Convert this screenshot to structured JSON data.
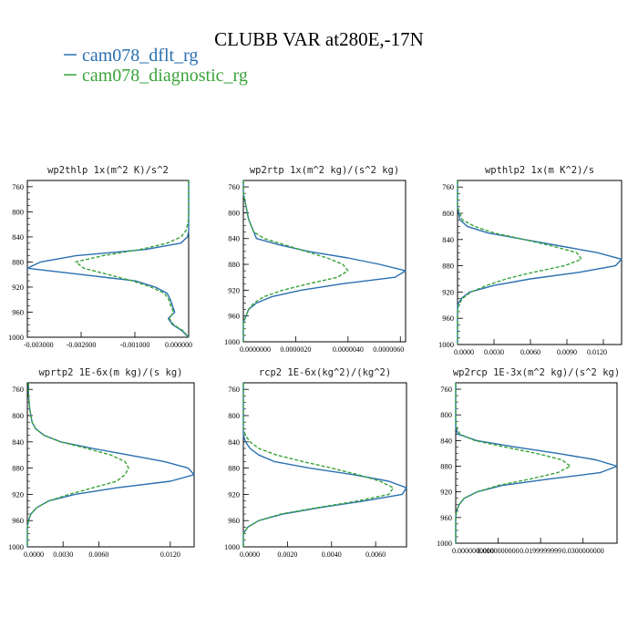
{
  "figure": {
    "title": "CLUBB VAR at280E,-17N"
  },
  "legend": [
    {
      "label": "cam078_dflt_rg",
      "color": "#2a6fb0"
    },
    {
      "label": "cam078_diagnostic_rg",
      "color": "#3aa33a"
    }
  ],
  "chart_data": [
    {
      "type": "line",
      "title": "wp2thlp  1x(m^2 K)/s^2",
      "y_axis": {
        "ticks": [
          "760",
          "800",
          "840",
          "880",
          "920",
          "960",
          "1000"
        ],
        "ylim": [
          750,
          1000
        ],
        "inverted": true
      },
      "x_axis": {
        "ticks": [
          "-0.003000",
          "-0.002000",
          "-0.001000",
          "0.000000"
        ],
        "xlim": [
          -0.003,
          0.0
        ]
      },
      "y": [
        750,
        770,
        790,
        810,
        820,
        830,
        840,
        850,
        860,
        870,
        880,
        890,
        900,
        910,
        920,
        930,
        940,
        950,
        960,
        970,
        980,
        990,
        1000
      ],
      "series": [
        {
          "name": "cam078_dflt_rg",
          "style": "solid",
          "x": [
            0,
            0,
            0,
            0,
            0,
            0,
            -2e-05,
            -0.00015,
            -0.0008,
            -0.0021,
            -0.00275,
            -0.003,
            -0.002,
            -0.001,
            -0.00062,
            -0.0004,
            -0.00034,
            -0.0003,
            -0.00026,
            -0.00038,
            -0.0003,
            -0.00012,
            0
          ]
        },
        {
          "name": "cam078_diagnostic_rg",
          "style": "dashed",
          "x": [
            0,
            0,
            0,
            0,
            -2e-05,
            -5e-05,
            -0.00014,
            -0.0004,
            -0.0009,
            -0.0016,
            -0.0021,
            -0.00195,
            -0.0015,
            -0.00105,
            -0.0007,
            -0.00045,
            -0.00037,
            -0.00033,
            -0.00028,
            -0.00036,
            -0.00028,
            -0.0001,
            0
          ]
        }
      ]
    },
    {
      "type": "line",
      "title": "wp2rtp  1x(m^2 kg)/(s^2 kg)",
      "y_axis": {
        "ticks": [
          "760",
          "800",
          "840",
          "880",
          "920",
          "960",
          "1000"
        ],
        "ylim": [
          750,
          1000
        ],
        "inverted": true
      },
      "x_axis": {
        "ticks": [
          "0.0000000",
          "0.0000020",
          "0.0000040",
          "0.0000060"
        ],
        "xlim": [
          0.0,
          6.2e-06
        ]
      },
      "y": [
        750,
        770,
        790,
        810,
        820,
        830,
        840,
        850,
        860,
        870,
        880,
        890,
        900,
        910,
        920,
        930,
        940,
        950,
        960,
        970,
        980,
        990,
        1000
      ],
      "series": [
        {
          "name": "cam078_dflt_rg",
          "style": "solid",
          "x": [
            0,
            0,
            1e-07,
            2e-07,
            3e-07,
            4e-07,
            5e-07,
            1.4e-06,
            2.5e-06,
            4e-06,
            5.2e-06,
            6.2e-06,
            5.8e-06,
            3.8e-06,
            2.2e-06,
            1.1e-06,
            5e-07,
            2e-07,
            1e-07,
            0,
            0,
            0,
            0
          ]
        },
        {
          "name": "cam078_diagnostic_rg",
          "style": "dashed",
          "x": [
            0,
            0,
            1e-07,
            2e-07,
            3e-07,
            4e-07,
            8e-07,
            1.6e-06,
            2.4e-06,
            3.2e-06,
            3.8e-06,
            4e-06,
            3.6e-06,
            2.5e-06,
            1.5e-06,
            8e-07,
            4e-07,
            2e-07,
            1e-07,
            0,
            0,
            0,
            0
          ]
        }
      ]
    },
    {
      "type": "line",
      "title": "wpthlp2  1x(m K^2)/s",
      "y_axis": {
        "ticks": [
          "760",
          "800",
          "840",
          "880",
          "920",
          "960",
          "1000"
        ],
        "ylim": [
          750,
          1000
        ],
        "inverted": true
      },
      "x_axis": {
        "ticks": [
          "0.0000",
          "0.0030",
          "0.0060",
          "0.0090",
          "0.0120"
        ],
        "xlim": [
          0.0,
          0.0135
        ]
      },
      "y": [
        750,
        770,
        790,
        810,
        820,
        830,
        840,
        850,
        860,
        870,
        880,
        890,
        900,
        910,
        920,
        930,
        940,
        950,
        960,
        970,
        980,
        990,
        1000
      ],
      "series": [
        {
          "name": "cam078_dflt_rg",
          "style": "solid",
          "x": [
            0,
            0,
            0,
            0.0002,
            0.0008,
            0.0025,
            0.0055,
            0.0085,
            0.0115,
            0.0135,
            0.013,
            0.01,
            0.006,
            0.003,
            0.001,
            0.0003,
            0,
            0,
            0,
            0,
            0,
            0,
            0
          ]
        },
        {
          "name": "cam078_diagnostic_rg",
          "style": "dashed",
          "x": [
            0,
            0,
            0,
            0.0004,
            0.0014,
            0.003,
            0.0055,
            0.0078,
            0.0098,
            0.0102,
            0.0088,
            0.0062,
            0.004,
            0.0024,
            0.0011,
            0.0004,
            0.0001,
            0,
            0,
            0,
            0,
            0,
            0
          ]
        }
      ]
    },
    {
      "type": "line",
      "title": "wprtp2  1E-6x(m kg)/(s kg)",
      "y_axis": {
        "ticks": [
          "760",
          "800",
          "840",
          "880",
          "920",
          "960",
          "1000"
        ],
        "ylim": [
          750,
          1000
        ],
        "inverted": true
      },
      "x_axis": {
        "ticks": [
          "0.0000",
          "0.0030",
          "0.0060",
          "0.0120"
        ],
        "xlim": [
          0.0,
          0.014
        ]
      },
      "y": [
        750,
        770,
        790,
        810,
        820,
        830,
        840,
        850,
        860,
        870,
        880,
        890,
        900,
        910,
        920,
        930,
        940,
        950,
        960,
        970,
        980,
        990,
        1000
      ],
      "series": [
        {
          "name": "cam078_dflt_rg",
          "style": "solid",
          "x": [
            0.0001,
            0.0001,
            0.0002,
            0.0004,
            0.0007,
            0.0014,
            0.0028,
            0.0055,
            0.0085,
            0.0115,
            0.0135,
            0.014,
            0.012,
            0.0075,
            0.004,
            0.0018,
            0.0008,
            0.0003,
            0.0001,
            0,
            0,
            0,
            0
          ]
        },
        {
          "name": "cam078_diagnostic_rg",
          "style": "dashed",
          "x": [
            0.0001,
            0.0001,
            0.0002,
            0.0004,
            0.0007,
            0.0014,
            0.0028,
            0.005,
            0.007,
            0.0082,
            0.0085,
            0.0082,
            0.0075,
            0.0055,
            0.0035,
            0.0018,
            0.0008,
            0.0003,
            0.0001,
            0,
            0,
            0,
            0
          ]
        }
      ]
    },
    {
      "type": "line",
      "title": "rcp2  1E-6x(kg^2)/(kg^2)",
      "y_axis": {
        "ticks": [
          "760",
          "800",
          "840",
          "880",
          "920",
          "960",
          "1000"
        ],
        "ylim": [
          750,
          1000
        ],
        "inverted": true
      },
      "x_axis": {
        "ticks": [
          "0.0000",
          "0.0020",
          "0.0040",
          "0.0060"
        ],
        "xlim": [
          0.0,
          0.0074
        ]
      },
      "y": [
        750,
        770,
        790,
        810,
        820,
        830,
        840,
        850,
        860,
        870,
        880,
        890,
        900,
        910,
        920,
        930,
        940,
        950,
        960,
        970,
        980,
        990,
        1000
      ],
      "series": [
        {
          "name": "cam078_dflt_rg",
          "style": "solid",
          "x": [
            0,
            0,
            0,
            0,
            0,
            0,
            0.0001,
            0.0003,
            0.0007,
            0.0014,
            0.003,
            0.005,
            0.0066,
            0.0074,
            0.0072,
            0.0055,
            0.0035,
            0.0018,
            0.0007,
            0.0002,
            0,
            0,
            0
          ]
        },
        {
          "name": "cam078_diagnostic_rg",
          "style": "dashed",
          "x": [
            0,
            0,
            0,
            0,
            0,
            0.0001,
            0.0003,
            0.0007,
            0.0015,
            0.0027,
            0.004,
            0.0052,
            0.0062,
            0.0068,
            0.0066,
            0.0052,
            0.0034,
            0.0017,
            0.0007,
            0.0002,
            0,
            0,
            0
          ]
        }
      ]
    },
    {
      "type": "line",
      "title": "wp2rcp  1E-3x(m^2 kg)/(s^2 kg)",
      "y_axis": {
        "ticks": [
          "760",
          "800",
          "840",
          "880",
          "920",
          "960",
          "1000"
        ],
        "ylim": [
          750,
          1000
        ],
        "inverted": true
      },
      "x_axis": {
        "ticks": [
          "0.0000000000",
          "0.0100000000",
          "0.0199999999",
          "0.0300000000"
        ],
        "xlim": [
          0.0,
          0.038
        ]
      },
      "y": [
        750,
        770,
        790,
        810,
        820,
        830,
        840,
        850,
        860,
        870,
        880,
        890,
        900,
        910,
        920,
        930,
        940,
        950,
        960,
        970,
        980,
        990,
        1000
      ],
      "series": [
        {
          "name": "cam078_dflt_rg",
          "style": "solid",
          "x": [
            0,
            0,
            0,
            0,
            0,
            0.0005,
            0.005,
            0.014,
            0.024,
            0.033,
            0.038,
            0.034,
            0.022,
            0.011,
            0.005,
            0.002,
            0.0008,
            0.0002,
            0,
            0,
            0,
            0,
            0
          ]
        },
        {
          "name": "cam078_diagnostic_rg",
          "style": "dashed",
          "x": [
            0,
            0,
            0,
            0,
            0.0002,
            0.001,
            0.0045,
            0.0115,
            0.019,
            0.025,
            0.027,
            0.024,
            0.0175,
            0.01,
            0.005,
            0.002,
            0.0008,
            0.0002,
            0,
            0,
            0,
            0,
            0
          ]
        }
      ]
    }
  ]
}
